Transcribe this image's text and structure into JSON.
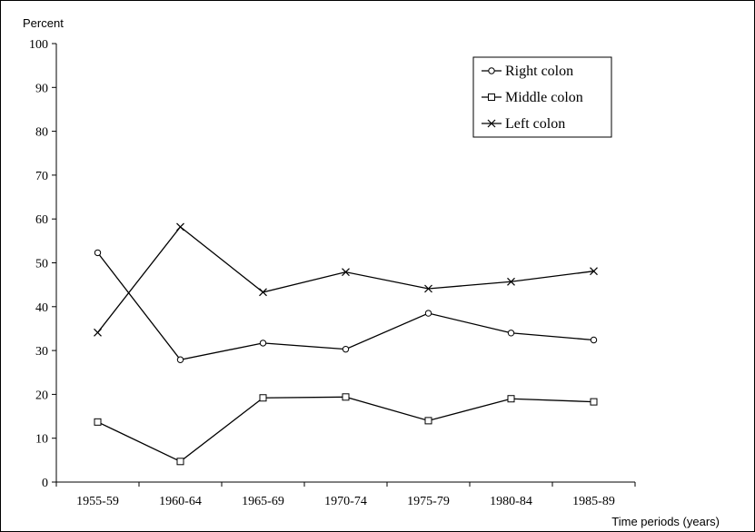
{
  "chart_data": {
    "type": "line",
    "ylabel": "Percent",
    "xlabel": "Time periods (years)",
    "categories": [
      "1955-59",
      "1960-64",
      "1965-69",
      "1970-74",
      "1975-79",
      "1980-84",
      "1985-89"
    ],
    "ylim": [
      0,
      100
    ],
    "yticks": [
      0,
      10,
      20,
      30,
      40,
      50,
      60,
      70,
      80,
      90,
      100
    ],
    "grid": false,
    "legend_position": "top-right",
    "series": [
      {
        "name": "Right colon",
        "marker": "circle",
        "values": [
          52.3,
          27.9,
          31.7,
          30.3,
          38.5,
          34.0,
          32.4
        ]
      },
      {
        "name": "Middle colon",
        "marker": "square",
        "values": [
          13.7,
          4.7,
          19.2,
          19.4,
          14.0,
          19.0,
          18.3
        ]
      },
      {
        "name": "Left colon",
        "marker": "cross",
        "values": [
          34.1,
          58.2,
          43.3,
          47.9,
          44.1,
          45.7,
          48.1
        ]
      }
    ]
  }
}
